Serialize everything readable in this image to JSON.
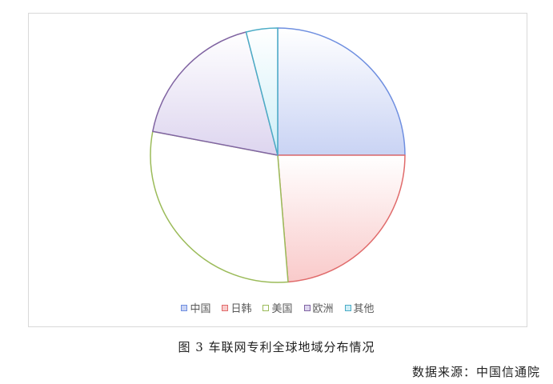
{
  "chart_data": {
    "type": "pie",
    "categories": [
      "中国",
      "日韩",
      "美国",
      "欧洲",
      "其他"
    ],
    "values": [
      25.0,
      23.7,
      29.3,
      18.0,
      4.0
    ],
    "colors": {
      "fill": [
        "#c9d3f4",
        "#f9caca",
        "#ffffff",
        "#ddd5ef",
        "#cdeef7"
      ],
      "stroke": [
        "#6f8fe0",
        "#e06b6b",
        "#9bbb59",
        "#8064a2",
        "#4bacc6"
      ]
    },
    "legend_position": "bottom",
    "start_angle_deg": 0,
    "direction": "clockwise"
  },
  "caption": "图 3 车联网专利全球地域分布情况",
  "source": "数据来源：中国信通院"
}
